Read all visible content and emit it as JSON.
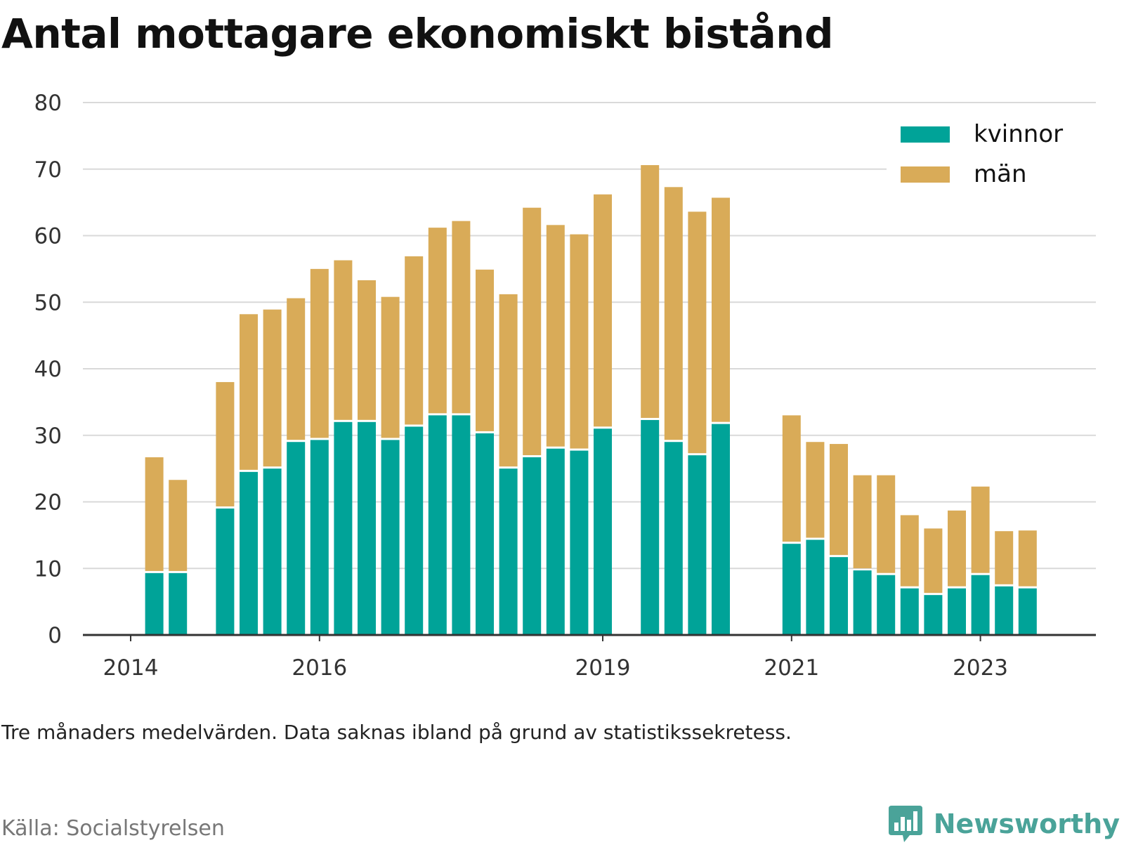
{
  "title": "Antal mottagare ekonomiskt bistånd",
  "note": "Tre månaders medelvärden. Data saknas ibland på grund av statistikssekretess.",
  "source": "Källa: Socialstyrelsen",
  "brand": {
    "name": "Newsworthy",
    "icon": "bar-chart-logo-icon"
  },
  "colors": {
    "kvinnor": "#00a398",
    "man": "#d9ab58",
    "grid": "#d9d9d9",
    "axis": "#333333"
  },
  "chart_data": {
    "type": "bar",
    "stacked": true,
    "ylim": [
      0,
      80
    ],
    "yticks": [
      0,
      10,
      20,
      30,
      40,
      50,
      60,
      70,
      80
    ],
    "xticks": [
      {
        "label": "2014",
        "at": 0
      },
      {
        "label": "2016",
        "at": 8
      },
      {
        "label": "2019",
        "at": 20
      },
      {
        "label": "2021",
        "at": 28
      },
      {
        "label": "2023",
        "at": 36
      }
    ],
    "legend": {
      "position": "top-right"
    },
    "grid": true,
    "series": [
      {
        "name": "kvinnor",
        "values": [
          null,
          9.3,
          9.3,
          null,
          19,
          24.5,
          25,
          29,
          29.3,
          32,
          32,
          29.3,
          31.3,
          33,
          33,
          30.3,
          25,
          26.7,
          28,
          27.7,
          31,
          null,
          32.3,
          29,
          27,
          31.7,
          null,
          null,
          13.7,
          14.3,
          11.7,
          9.7,
          9,
          7,
          6,
          7,
          9,
          7.3,
          7
        ]
      },
      {
        "name": "män",
        "values": [
          null,
          17.4,
          14,
          null,
          19,
          23.7,
          23.9,
          21.6,
          25.7,
          24.3,
          21.3,
          21.5,
          25.6,
          28.2,
          29.2,
          24.6,
          26.2,
          37.5,
          33.6,
          32.5,
          35.2,
          null,
          38.3,
          38.3,
          36.6,
          34,
          null,
          null,
          19.3,
          14.7,
          17,
          14.3,
          15,
          11,
          10,
          11.7,
          13.3,
          8.3,
          8.7
        ]
      }
    ]
  }
}
